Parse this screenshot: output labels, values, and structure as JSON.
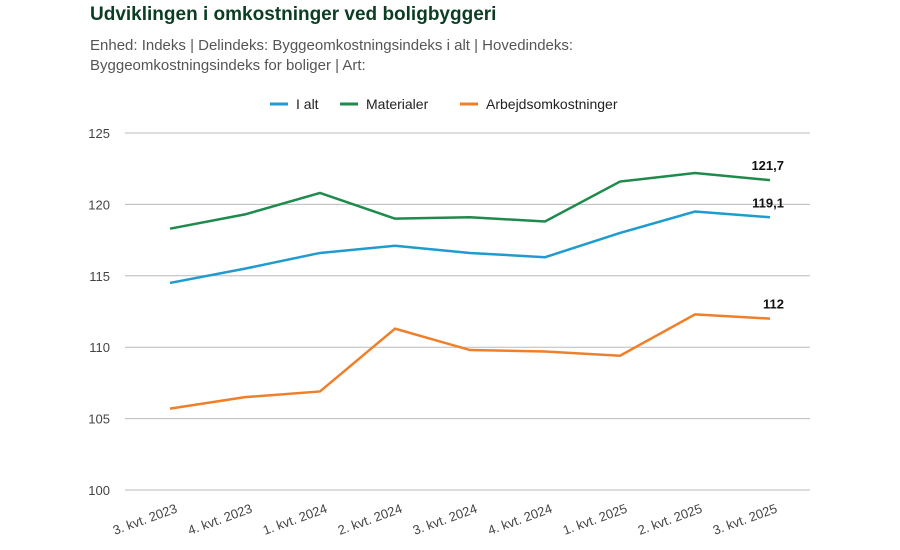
{
  "chart_data": {
    "type": "line",
    "title": "Udviklingen i omkostninger ved boligbyggeri",
    "subtitle": "Enhed: Indeks | Delindeks: Byggeomkostningsindeks i alt | Hovedindeks: Byggeomkostningsindeks for boliger | Art:",
    "categories": [
      "3. kvt. 2023",
      "4. kvt. 2023",
      "1. kvt. 2024",
      "2. kvt. 2024",
      "3. kvt. 2024",
      "4. kvt. 2024",
      "1. kvt. 2025",
      "2. kvt. 2025",
      "3. kvt. 2025"
    ],
    "ylim": [
      100,
      125
    ],
    "yticks": [
      100,
      105,
      110,
      115,
      120,
      125
    ],
    "grid": true,
    "legend_position": "top",
    "series": [
      {
        "name": "I alt",
        "color": "#1f9bcf",
        "values": [
          114.5,
          115.5,
          116.6,
          117.1,
          116.6,
          116.3,
          118.0,
          119.5,
          119.1
        ],
        "end_label": "119,1"
      },
      {
        "name": "Materialer",
        "color": "#1e8a4c",
        "values": [
          118.3,
          119.3,
          120.8,
          119.0,
          119.1,
          118.8,
          121.6,
          122.2,
          121.7
        ],
        "end_label": "121,7"
      },
      {
        "name": "Arbejdsomkostninger",
        "color": "#f07f2a",
        "values": [
          105.7,
          106.5,
          106.9,
          111.3,
          109.8,
          109.7,
          109.4,
          112.3,
          112.0
        ],
        "end_label": "112"
      }
    ]
  }
}
